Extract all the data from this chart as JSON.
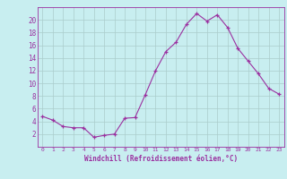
{
  "x": [
    0,
    1,
    2,
    3,
    4,
    5,
    6,
    7,
    8,
    9,
    10,
    11,
    12,
    13,
    14,
    15,
    16,
    17,
    18,
    19,
    20,
    21,
    22,
    23
  ],
  "y": [
    4.8,
    4.2,
    3.2,
    3.0,
    3.0,
    1.5,
    1.8,
    2.0,
    4.5,
    4.6,
    8.2,
    12.0,
    15.0,
    16.5,
    19.3,
    21.0,
    19.8,
    20.8,
    18.8,
    15.5,
    13.5,
    11.5,
    9.2,
    8.3
  ],
  "line_color": "#9b30a0",
  "marker_color": "#9b30a0",
  "bg_color": "#c8eef0",
  "grid_color": "#aacccc",
  "xlabel": "Windchill (Refroidissement éolien,°C)",
  "xlabel_color": "#9b30a0",
  "tick_color": "#9b30a0",
  "spine_color": "#9b30a0",
  "ylim": [
    0,
    22
  ],
  "yticks": [
    2,
    4,
    6,
    8,
    10,
    12,
    14,
    16,
    18,
    20
  ],
  "xticks": [
    0,
    1,
    2,
    3,
    4,
    5,
    6,
    7,
    8,
    9,
    10,
    11,
    12,
    13,
    14,
    15,
    16,
    17,
    18,
    19,
    20,
    21,
    22,
    23
  ]
}
